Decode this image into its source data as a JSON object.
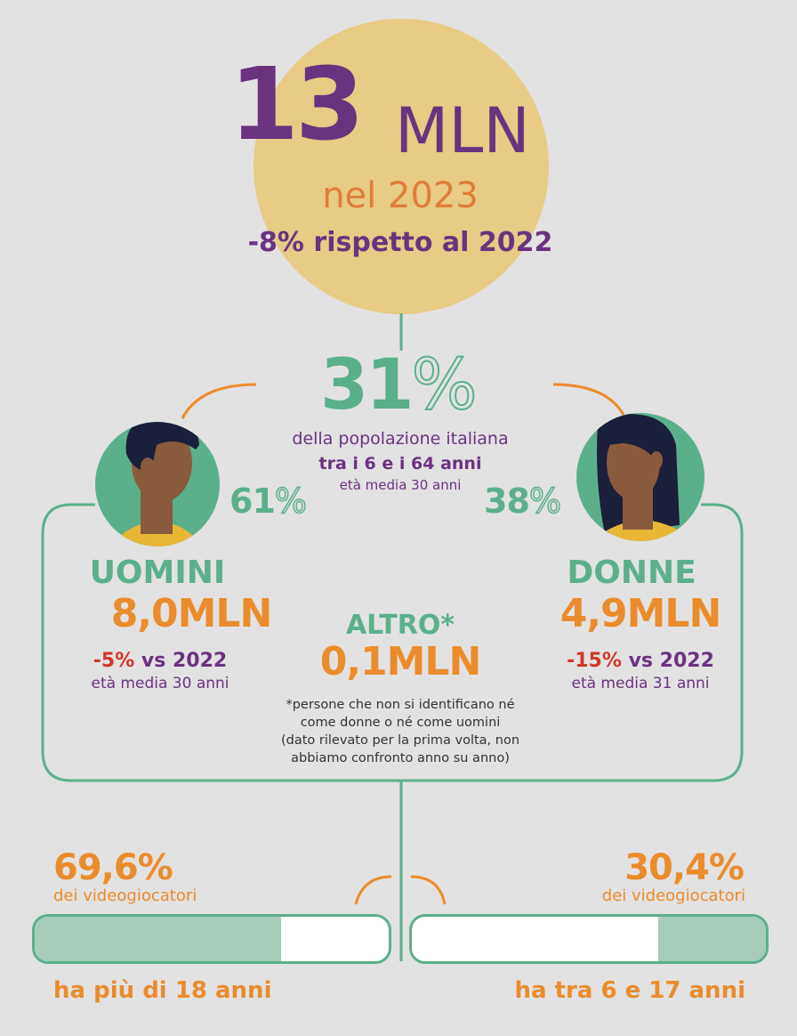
{
  "headline": {
    "number": "13",
    "unit": "MLN",
    "year_label": "nel 2023",
    "change_label": "-8% rispetto al 2022"
  },
  "population": {
    "pct_number": "31",
    "pct_sign": "%",
    "line1": "della popolazione italiana",
    "line2": "tra i 6 e i 64 anni",
    "line3": "età media 30 anni"
  },
  "men": {
    "pct_number": "61",
    "pct_sign": "%",
    "label": "UOMINI",
    "value": "8,0MLN",
    "change_pct": "-5%",
    "change_rest": " vs 2022",
    "age": "età media 30 anni"
  },
  "women": {
    "pct_number": "38",
    "pct_sign": "%",
    "label": "DONNE",
    "value": "4,9MLN",
    "change_pct": "-15%",
    "change_rest": " vs 2022",
    "age": "età media 31 anni"
  },
  "other": {
    "label": "ALTRO*",
    "value": "0,1MLN",
    "note_line1": "*persone che non si identificano né",
    "note_line2": "come donne o né come uomini",
    "note_line3": "(dato rilevato per la prima volta, non",
    "note_line4": "abbiamo confronto anno su anno)"
  },
  "age_groups": [
    {
      "pct": "69,6%",
      "sub": "dei videogiocatori",
      "caption": "ha più di 18 anni",
      "share": 0.696
    },
    {
      "pct": "30,4%",
      "sub": "dei videogiocatori",
      "caption": "ha tra 6 e 17 anni",
      "share": 0.304
    }
  ],
  "colors": {
    "background": "#e2e2e2",
    "circle": "#e8cb84",
    "purple": "#6b3280",
    "orange": "#ea8c2c",
    "green": "#5ab08a",
    "red": "#d0372b",
    "bar_fill": "#a6cdb9"
  }
}
